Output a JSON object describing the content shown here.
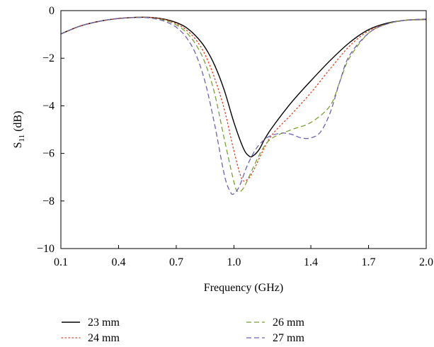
{
  "chart_data": {
    "type": "line",
    "title": "",
    "xlabel": "Frequency (GHz)",
    "ylabel": "S11 (dB)",
    "ylabel_main": "S",
    "ylabel_sub": "11",
    "ylabel_unit": " (dB)",
    "xlim": [
      0.1,
      2.0
    ],
    "ylim": [
      -10,
      0
    ],
    "x_ticks": [
      "0.1",
      "0.4",
      "0.7",
      "1.0",
      "1.4",
      "1.7",
      "2.0"
    ],
    "y_ticks": [
      "0",
      "−2",
      "−4",
      "−6",
      "−8",
      "−10"
    ],
    "grid": false,
    "legend": "bottom",
    "series": [
      {
        "name": "23 mm",
        "color": "#000000",
        "dash": "solid",
        "x": [
          0.1,
          0.2,
          0.3,
          0.4,
          0.5,
          0.55,
          0.6,
          0.65,
          0.7,
          0.75,
          0.8,
          0.85,
          0.9,
          0.95,
          1.0,
          1.05,
          1.08,
          1.1,
          1.13,
          1.16,
          1.2,
          1.3,
          1.4,
          1.5,
          1.6,
          1.7,
          1.8,
          1.9,
          2.0
        ],
        "y": [
          -0.98,
          -0.65,
          -0.45,
          -0.33,
          -0.28,
          -0.28,
          -0.31,
          -0.38,
          -0.5,
          -0.7,
          -1.05,
          -1.55,
          -2.3,
          -3.35,
          -4.7,
          -5.8,
          -6.12,
          -6.1,
          -5.85,
          -5.4,
          -4.9,
          -3.85,
          -2.95,
          -2.1,
          -1.35,
          -0.8,
          -0.52,
          -0.4,
          -0.37
        ]
      },
      {
        "name": "24 mm",
        "color": "#e04020",
        "dash": "dotted",
        "x": [
          0.1,
          0.2,
          0.3,
          0.4,
          0.5,
          0.55,
          0.6,
          0.65,
          0.7,
          0.75,
          0.8,
          0.85,
          0.9,
          0.95,
          1.0,
          1.04,
          1.07,
          1.1,
          1.15,
          1.2,
          1.3,
          1.4,
          1.5,
          1.6,
          1.7,
          1.8,
          1.9,
          2.0
        ],
        "y": [
          -0.98,
          -0.65,
          -0.45,
          -0.33,
          -0.28,
          -0.28,
          -0.32,
          -0.4,
          -0.55,
          -0.8,
          -1.2,
          -1.85,
          -2.85,
          -4.15,
          -5.9,
          -7.05,
          -7.1,
          -6.75,
          -5.9,
          -5.2,
          -4.35,
          -3.45,
          -2.45,
          -1.5,
          -0.85,
          -0.55,
          -0.4,
          -0.37
        ]
      },
      {
        "name": "26 mm",
        "color": "#7aa030",
        "dash": "dashed",
        "x": [
          0.1,
          0.2,
          0.3,
          0.4,
          0.5,
          0.55,
          0.6,
          0.65,
          0.7,
          0.75,
          0.8,
          0.85,
          0.9,
          0.95,
          1.0,
          1.02,
          1.05,
          1.1,
          1.15,
          1.2,
          1.3,
          1.4,
          1.5,
          1.55,
          1.6,
          1.7,
          1.8,
          1.9,
          2.0
        ],
        "y": [
          -0.98,
          -0.65,
          -0.45,
          -0.33,
          -0.28,
          -0.29,
          -0.34,
          -0.43,
          -0.6,
          -0.9,
          -1.4,
          -2.2,
          -3.5,
          -5.4,
          -7.2,
          -7.6,
          -7.45,
          -6.6,
          -5.8,
          -5.35,
          -5.0,
          -4.7,
          -4.0,
          -3.0,
          -2.0,
          -0.95,
          -0.55,
          -0.4,
          -0.36
        ]
      },
      {
        "name": "27 mm",
        "color": "#7060b0",
        "dash": "dashed",
        "x": [
          0.1,
          0.2,
          0.3,
          0.4,
          0.5,
          0.55,
          0.6,
          0.65,
          0.7,
          0.75,
          0.8,
          0.85,
          0.9,
          0.95,
          0.98,
          1.0,
          1.03,
          1.07,
          1.12,
          1.18,
          1.25,
          1.3,
          1.35,
          1.4,
          1.45,
          1.5,
          1.55,
          1.6,
          1.7,
          1.8,
          1.9,
          2.0
        ],
        "y": [
          -0.98,
          -0.65,
          -0.45,
          -0.33,
          -0.29,
          -0.3,
          -0.36,
          -0.48,
          -0.7,
          -1.1,
          -1.8,
          -3.0,
          -4.8,
          -6.9,
          -7.6,
          -7.7,
          -7.35,
          -6.5,
          -5.75,
          -5.3,
          -5.15,
          -5.2,
          -5.35,
          -5.35,
          -5.1,
          -4.3,
          -3.0,
          -1.9,
          -0.95,
          -0.55,
          -0.4,
          -0.35
        ]
      }
    ]
  }
}
